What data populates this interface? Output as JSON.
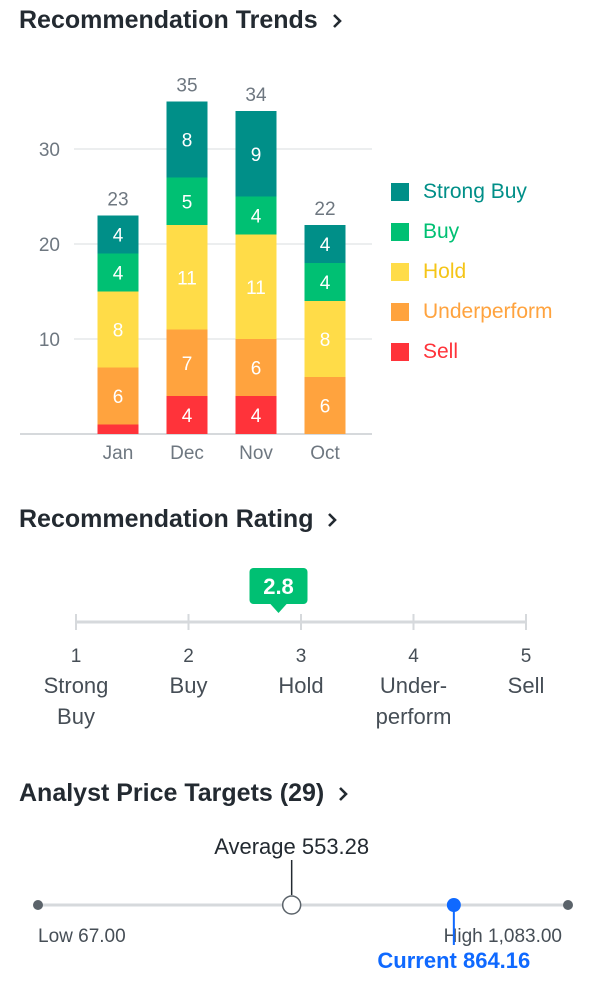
{
  "trends": {
    "title": "Recommendation Trends",
    "chevron_icon": "chevron-right-icon"
  },
  "chart_data": {
    "type": "bar",
    "categories": [
      "Jan",
      "Dec",
      "Nov",
      "Oct"
    ],
    "yticks": [
      10,
      20,
      30
    ],
    "ylim": [
      0,
      35
    ],
    "series": [
      {
        "name": "Sell",
        "color": "#ff333a",
        "values": [
          1,
          4,
          4,
          0
        ]
      },
      {
        "name": "Underperform",
        "color": "#ffa33e",
        "values": [
          6,
          7,
          6,
          6
        ]
      },
      {
        "name": "Hold",
        "color": "#ffdc48",
        "values": [
          8,
          11,
          11,
          8
        ]
      },
      {
        "name": "Buy",
        "color": "#00c073",
        "values": [
          4,
          5,
          4,
          4
        ]
      },
      {
        "name": "Strong Buy",
        "color": "#008f88",
        "values": [
          4,
          8,
          9,
          4
        ]
      }
    ],
    "totals": [
      23,
      35,
      34,
      22
    ],
    "legend": [
      "Strong Buy",
      "Buy",
      "Hold",
      "Underperform",
      "Sell"
    ],
    "grid": true,
    "legend_position": "right"
  },
  "rating": {
    "title": "Recommendation Rating",
    "value": "2.8",
    "value_num": 2.8,
    "badge_color": "#00c073",
    "scale": [
      {
        "num": "1",
        "line1": "Strong",
        "line2": "Buy"
      },
      {
        "num": "2",
        "line1": "Buy",
        "line2": ""
      },
      {
        "num": "3",
        "line1": "Hold",
        "line2": ""
      },
      {
        "num": "4",
        "line1": "Under-",
        "line2": "perform"
      },
      {
        "num": "5",
        "line1": "Sell",
        "line2": ""
      }
    ]
  },
  "targets": {
    "title": "Analyst Price Targets (29)",
    "low_label": "Low 67.00",
    "high_label": "High 1,083.00",
    "average_label": "Average 553.28",
    "current_label": "Current 864.16",
    "low": 67.0,
    "high": 1083.0,
    "average": 553.28,
    "current": 864.16,
    "current_color": "#0f69ff"
  }
}
